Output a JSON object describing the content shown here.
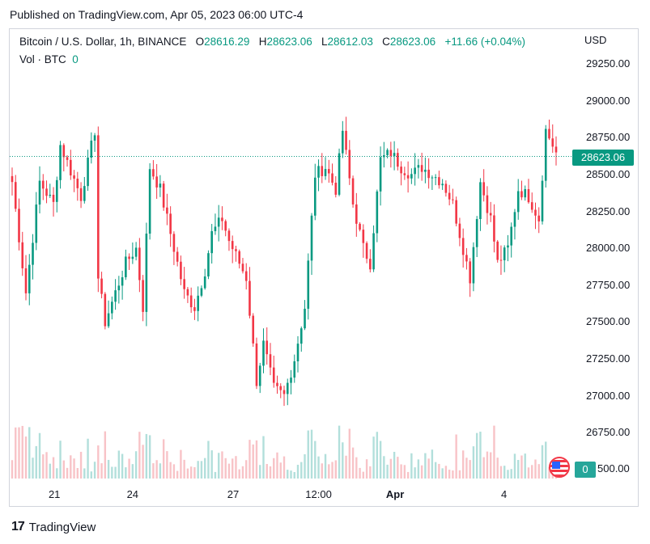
{
  "published": "Published on TradingView.com, Apr 05, 2023 06:00 UTC-4",
  "legend": {
    "symbol": "Bitcoin / U.S. Dollar, 1h, BINANCE",
    "o_label": "O",
    "o_value": "28616.29",
    "h_label": "H",
    "h_value": "28623.06",
    "l_label": "L",
    "l_value": "28612.03",
    "c_label": "C",
    "c_value": "28623.06",
    "change": "+11.66 (+0.04%)",
    "vol_label": "Vol · BTC",
    "vol_value": "0"
  },
  "currency": "USD",
  "price_badge": "28623.06",
  "vol_badge": "0",
  "brand": {
    "logo": "17",
    "name": "TradingView"
  },
  "colors": {
    "up": "#089981",
    "down": "#f23645",
    "vol_up": "#b2dfdb",
    "vol_down": "#f8c3c7",
    "last_line": "#089981"
  },
  "chart_data": {
    "type": "candlestick",
    "title": "Bitcoin / U.S. Dollar, 1h, BINANCE",
    "ylabel": "USD",
    "ylim": [
      26500,
      29400
    ],
    "yticks": [
      "29250.00",
      "29000.00",
      "28750.00",
      "28500.00",
      "28250.00",
      "28000.00",
      "27750.00",
      "27500.00",
      "27250.00",
      "27000.00",
      "26750.00",
      "26500.00"
    ],
    "ytick_values": [
      29250,
      29000,
      28750,
      28500,
      28250,
      28000,
      27750,
      27500,
      27250,
      27000,
      26750,
      26500
    ],
    "xticks": [
      {
        "label": "21",
        "bold": false,
        "t": 0.08
      },
      {
        "label": "24",
        "bold": false,
        "t": 0.22
      },
      {
        "label": "27",
        "bold": false,
        "t": 0.4
      },
      {
        "label": "12:00",
        "bold": false,
        "t": 0.553
      },
      {
        "label": "Apr",
        "bold": true,
        "t": 0.69
      },
      {
        "label": "4",
        "bold": false,
        "t": 0.885
      }
    ],
    "last_price": 28623.06,
    "anchors": [
      [
        0,
        28450
      ],
      [
        4,
        27700
      ],
      [
        8,
        28450
      ],
      [
        12,
        28300
      ],
      [
        14,
        28700
      ],
      [
        20,
        28350
      ],
      [
        24,
        28800
      ],
      [
        25,
        27800
      ],
      [
        27,
        27500
      ],
      [
        30,
        27700
      ],
      [
        33,
        27900
      ],
      [
        36,
        28000
      ],
      [
        38,
        27600
      ],
      [
        40,
        28550
      ],
      [
        43,
        28400
      ],
      [
        46,
        28100
      ],
      [
        50,
        27700
      ],
      [
        53,
        27600
      ],
      [
        56,
        27850
      ],
      [
        58,
        28100
      ],
      [
        61,
        28200
      ],
      [
        63,
        28050
      ],
      [
        66,
        27900
      ],
      [
        68,
        27800
      ],
      [
        71,
        27100
      ],
      [
        73,
        27350
      ],
      [
        76,
        27050
      ],
      [
        79,
        27000
      ],
      [
        82,
        27250
      ],
      [
        85,
        27600
      ],
      [
        88,
        28500
      ],
      [
        91,
        28550
      ],
      [
        94,
        28400
      ],
      [
        96,
        28800
      ],
      [
        99,
        28300
      ],
      [
        102,
        28000
      ],
      [
        104,
        27900
      ],
      [
        107,
        28600
      ],
      [
        110,
        28650
      ],
      [
        113,
        28550
      ],
      [
        116,
        28500
      ],
      [
        119,
        28550
      ],
      [
        122,
        28500
      ],
      [
        125,
        28450
      ],
      [
        128,
        28300
      ],
      [
        131,
        28000
      ],
      [
        133,
        27800
      ],
      [
        136,
        28450
      ],
      [
        139,
        28200
      ],
      [
        141,
        27900
      ],
      [
        144,
        28000
      ],
      [
        147,
        28400
      ],
      [
        150,
        28350
      ],
      [
        153,
        28200
      ],
      [
        155,
        28800
      ],
      [
        158,
        28650
      ]
    ],
    "volume_note": "volume histogram along bottom, relative scale"
  }
}
